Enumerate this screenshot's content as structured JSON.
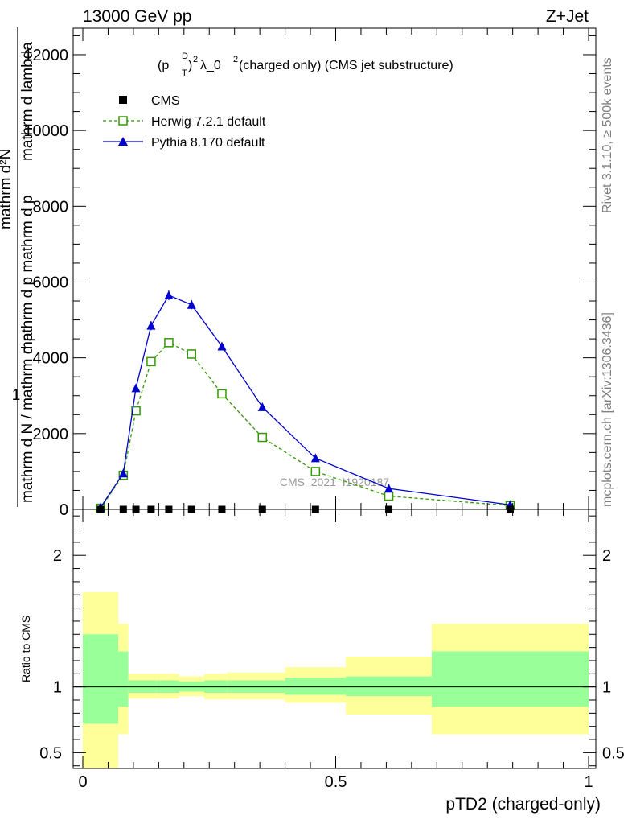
{
  "header": {
    "left": "13000 GeV pp",
    "right": "Z+Jet"
  },
  "side": {
    "rivet": "Rivet 3.1.10, ≥ 500k events",
    "mcplots": "mcplots.cern.ch [arXiv:1306.3436]"
  },
  "colors": {
    "cms": "#000000",
    "herwig": "#339900",
    "pythia": "#0000cc",
    "band_inner": "#99ff99",
    "band_outer": "#ffff99"
  },
  "chart_data": [
    {
      "type": "line",
      "title_parts": [
        "(p",
        "D",
        "T",
        ")",
        "2",
        " λ_0",
        "2",
        " (charged only) (CMS jet substructure)"
      ],
      "ylabel_parts": [
        "1",
        "mathrm d N / mathrm d p",
        "mathrm d p",
        "T",
        " mathrm d lambda",
        "mathrm d",
        "2",
        "N"
      ],
      "ylabel_lines": [
        "mathrm d N / mathrm d p",
        "mathrm d p mathrm d p",
        "mathrm d lambda",
        "mathrm d²N"
      ],
      "watermark": "CMS_2021_I1920187",
      "ylim": [
        0,
        12700
      ],
      "yticks": [
        0,
        2000,
        4000,
        6000,
        8000,
        10000,
        12000
      ],
      "ytick_labels": [
        "0",
        "2000",
        "4000",
        "6000",
        "8000",
        "10000",
        "12000"
      ],
      "xlim": [
        0,
        1
      ],
      "legend": {
        "position": "top-left",
        "entries": [
          "CMS",
          "Herwig 7.2.1 default",
          "Pythia 8.170 default"
        ]
      },
      "series": [
        {
          "name": "CMS",
          "marker": "square",
          "x": [
            0.035,
            0.08,
            0.105,
            0.135,
            0.17,
            0.215,
            0.275,
            0.355,
            0.46,
            0.605,
            0.845
          ],
          "y": [
            0,
            0,
            0,
            0,
            0,
            0,
            0,
            0,
            0,
            0,
            0
          ]
        },
        {
          "name": "Herwig 7.2.1 default",
          "marker": "open-square",
          "line": "dashed",
          "x": [
            0.035,
            0.08,
            0.105,
            0.135,
            0.17,
            0.215,
            0.275,
            0.355,
            0.46,
            0.605,
            0.845
          ],
          "y": [
            30,
            900,
            2600,
            3900,
            4400,
            4100,
            3050,
            1900,
            1000,
            350,
            100
          ]
        },
        {
          "name": "Pythia 8.170 default",
          "marker": "triangle",
          "line": "solid",
          "x": [
            0.035,
            0.08,
            0.105,
            0.135,
            0.17,
            0.215,
            0.275,
            0.355,
            0.46,
            0.605,
            0.845
          ],
          "y": [
            50,
            950,
            3200,
            4850,
            5650,
            5400,
            4300,
            2700,
            1350,
            550,
            120
          ],
          "yerr": [
            20,
            60,
            100,
            120,
            130,
            120,
            80,
            50,
            30,
            15,
            8
          ]
        }
      ]
    },
    {
      "type": "area",
      "ylabel": "Ratio to CMS",
      "xlabel": "pTD2 (charged-only)",
      "xlim": [
        0,
        1
      ],
      "xticks": [
        0,
        0.5,
        1
      ],
      "xtick_labels": [
        "0",
        "0.5",
        "1"
      ],
      "ylim": [
        0.38,
        2.35
      ],
      "yticks": [
        0.5,
        1,
        2
      ],
      "ytick_labels": [
        "0.5",
        "1",
        "2"
      ],
      "reference_line": 1,
      "bins": [
        0,
        0.07,
        0.09,
        0.145,
        0.19,
        0.24,
        0.285,
        0.4,
        0.52,
        0.69,
        1.0
      ],
      "inner_band": [
        [
          0.72,
          1.4
        ],
        [
          0.85,
          1.27
        ],
        [
          0.955,
          1.05
        ],
        [
          0.955,
          1.05
        ],
        [
          0.965,
          1.04
        ],
        [
          0.955,
          1.05
        ],
        [
          0.955,
          1.05
        ],
        [
          0.94,
          1.07
        ],
        [
          0.93,
          1.08
        ],
        [
          0.85,
          1.27
        ]
      ],
      "outer_band": [
        [
          0.0,
          1.72
        ],
        [
          0.64,
          1.48
        ],
        [
          0.91,
          1.1
        ],
        [
          0.91,
          1.1
        ],
        [
          0.93,
          1.08
        ],
        [
          0.905,
          1.1
        ],
        [
          0.905,
          1.11
        ],
        [
          0.88,
          1.15
        ],
        [
          0.79,
          1.23
        ],
        [
          0.64,
          1.48
        ]
      ]
    }
  ]
}
